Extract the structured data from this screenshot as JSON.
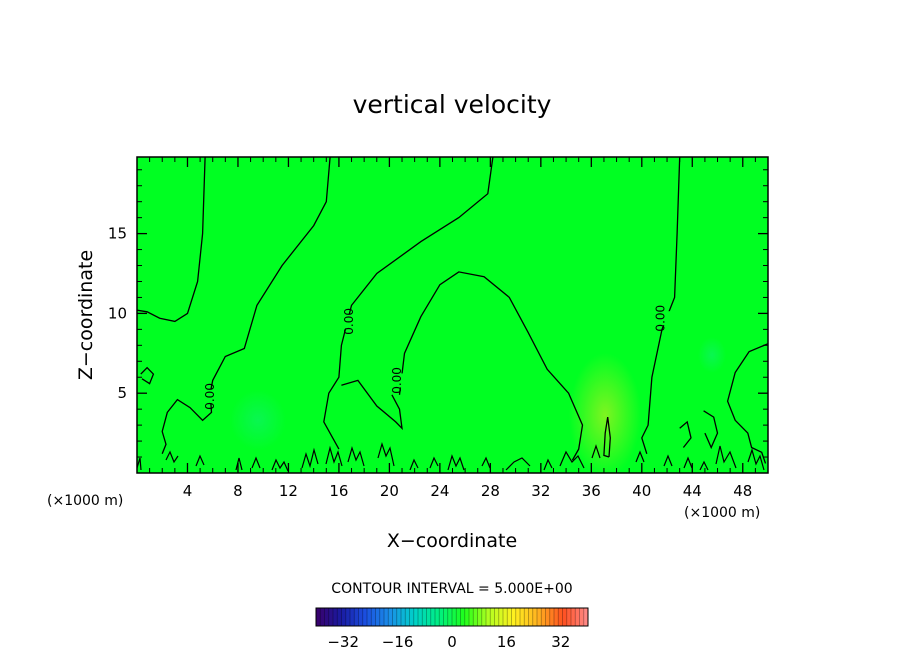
{
  "chart_data": {
    "type": "heatmap",
    "title": "vertical velocity",
    "xlabel": "X−coordinate",
    "ylabel": "Z−coordinate",
    "x_units": "(×1000 m)",
    "y_units": "(×1000 m)",
    "xlim": [
      0,
      50
    ],
    "ylim": [
      0,
      19.8
    ],
    "x_ticks": [
      4,
      8,
      12,
      16,
      20,
      24,
      28,
      32,
      36,
      40,
      44,
      48
    ],
    "x_tick_labels": [
      "4",
      "8",
      "12",
      "16",
      "20",
      "24",
      "28",
      "32",
      "36",
      "40",
      "44",
      "48"
    ],
    "y_ticks": [
      5,
      10,
      15
    ],
    "y_tick_labels": [
      "5",
      "10",
      "15"
    ],
    "background_color": "#00ff22",
    "contour_interval_text": "CONTOUR INTERVAL = 5.000E+00",
    "contour_labels": [
      "0.00",
      "0.00",
      "0.00",
      "0.00"
    ],
    "contour_label_positions": [
      [
        5.8,
        4.8
      ],
      [
        16.8,
        9.5
      ],
      [
        20.6,
        5.8
      ],
      [
        41.5,
        9.7
      ]
    ],
    "contour_lines": [
      [
        [
          5.4,
          19.8
        ],
        [
          5.2,
          15
        ],
        [
          4.8,
          12
        ],
        [
          4,
          10
        ],
        [
          3,
          9.5
        ],
        [
          1.8,
          9.7
        ],
        [
          0.8,
          10.1
        ],
        [
          0,
          10.2
        ]
      ],
      [
        [
          15.3,
          19.8
        ],
        [
          15,
          17
        ],
        [
          14,
          15.5
        ],
        [
          11.5,
          13
        ],
        [
          9.5,
          10.5
        ],
        [
          8.5,
          7.8
        ],
        [
          7,
          7.3
        ],
        [
          6,
          5.8
        ],
        [
          5.8,
          5
        ],
        [
          5.9,
          3.8
        ],
        [
          5.2,
          3.3
        ],
        [
          4.2,
          4.1
        ],
        [
          3.2,
          4.6
        ],
        [
          2.4,
          3.8
        ],
        [
          2,
          2.6
        ],
        [
          2.3,
          1.8
        ],
        [
          2,
          1.2
        ]
      ],
      [
        [
          28.2,
          19.8
        ],
        [
          27.8,
          17.5
        ],
        [
          25.5,
          16
        ],
        [
          22.5,
          14.5
        ],
        [
          19,
          12.5
        ],
        [
          17,
          10.5
        ],
        [
          16.2,
          8
        ],
        [
          16,
          6
        ],
        [
          15.2,
          5
        ],
        [
          14.8,
          3.2
        ],
        [
          16,
          1.5
        ]
      ],
      [
        [
          16.2,
          5.5
        ],
        [
          17.5,
          5.8
        ],
        [
          19,
          4.2
        ],
        [
          20.5,
          3.2
        ],
        [
          21,
          2.8
        ],
        [
          20.8,
          4
        ],
        [
          20.2,
          4.9
        ]
      ],
      [
        [
          20.8,
          4.9
        ],
        [
          21.2,
          7.5
        ],
        [
          22.5,
          9.8
        ],
        [
          24,
          11.8
        ],
        [
          25.5,
          12.6
        ],
        [
          27.5,
          12.3
        ],
        [
          29.5,
          11
        ],
        [
          31,
          8.8
        ],
        [
          32.5,
          6.5
        ],
        [
          34.2,
          5
        ],
        [
          35.3,
          3
        ],
        [
          35,
          1.5
        ],
        [
          34.5,
          0.8
        ]
      ],
      [
        [
          43,
          19.8
        ],
        [
          42.8,
          15
        ],
        [
          42.6,
          11
        ],
        [
          41.6,
          9
        ],
        [
          40.8,
          6
        ],
        [
          40.5,
          3
        ],
        [
          40,
          2.2
        ],
        [
          40.4,
          1.2
        ]
      ],
      [
        [
          37.4,
          1.0
        ],
        [
          37.5,
          2.2
        ],
        [
          37.3,
          3.5
        ],
        [
          37.1,
          2.5
        ],
        [
          37.0,
          1.1
        ],
        [
          37.4,
          1.0
        ]
      ],
      [
        [
          50,
          8.1
        ],
        [
          48.5,
          7.6
        ],
        [
          47.4,
          6.3
        ],
        [
          46.8,
          4.5
        ],
        [
          47.4,
          3.3
        ],
        [
          48.4,
          2.5
        ],
        [
          48.7,
          1.6
        ],
        [
          49.5,
          1.3
        ],
        [
          49.8,
          0.6
        ]
      ],
      [
        [
          0.3,
          6.2
        ],
        [
          0.8,
          6.6
        ],
        [
          1.3,
          6.2
        ],
        [
          1.0,
          5.6
        ],
        [
          0.4,
          5.9
        ]
      ],
      [
        [
          44.9,
          3.9
        ],
        [
          45.7,
          3.5
        ],
        [
          46.0,
          2.5
        ],
        [
          45.5,
          1.6
        ],
        [
          45.0,
          2.5
        ]
      ],
      [
        [
          43.0,
          2.8
        ],
        [
          43.6,
          3.2
        ],
        [
          43.9,
          2.2
        ],
        [
          43.3,
          1.6
        ]
      ]
    ],
    "colorbar": {
      "ticks": [
        -32,
        -16,
        0,
        16,
        32
      ],
      "tick_labels": [
        "−32",
        "−16",
        "0",
        "16",
        "32"
      ],
      "range": [
        -40,
        40
      ],
      "colors": [
        "#3a006a",
        "#1a1aa0",
        "#1b4fe0",
        "#1a90e8",
        "#00d2c8",
        "#00f080",
        "#1fff1a",
        "#b4ff20",
        "#fff020",
        "#ffb020",
        "#ff5020",
        "#ff8c8c"
      ]
    }
  }
}
